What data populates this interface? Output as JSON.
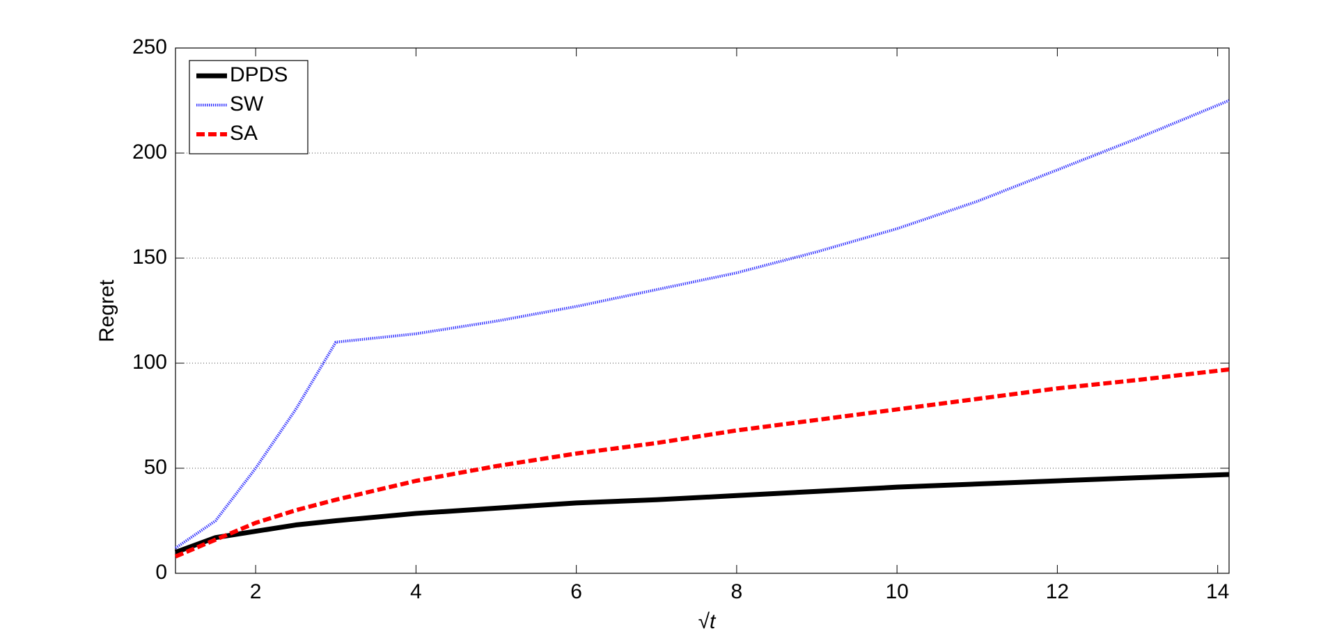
{
  "chart_data": {
    "type": "line",
    "xlabel": "√t",
    "ylabel": "Regret",
    "x": [
      1,
      1.5,
      2,
      2.5,
      3,
      4,
      5,
      6,
      7,
      8,
      9,
      10,
      11,
      12,
      13,
      14.14
    ],
    "series": [
      {
        "name": "DPDS",
        "color": "#000000",
        "dash": "solid",
        "values": [
          10,
          17,
          20,
          23,
          25,
          28.5,
          31,
          33.5,
          35,
          37,
          39,
          41,
          42.5,
          44,
          45.5,
          47
        ]
      },
      {
        "name": "SW",
        "color": "#3a3aff",
        "dash": "dotted",
        "values": [
          12,
          25,
          50,
          78,
          110,
          114,
          120,
          127,
          135,
          143,
          153,
          164,
          177,
          192,
          207,
          225
        ]
      },
      {
        "name": "SA",
        "color": "#ff0000",
        "dash": "dashed",
        "values": [
          8,
          16,
          24,
          30,
          35,
          44,
          51,
          57,
          62,
          68,
          73,
          78,
          83,
          88,
          92,
          97
        ]
      }
    ],
    "xlim": [
      1,
      14.142
    ],
    "ylim": [
      0,
      250
    ],
    "xticks": [
      2,
      4,
      6,
      8,
      10,
      12,
      14
    ],
    "yticks": [
      0,
      50,
      100,
      150,
      200,
      250
    ],
    "grid": true,
    "legend": "top-left"
  }
}
